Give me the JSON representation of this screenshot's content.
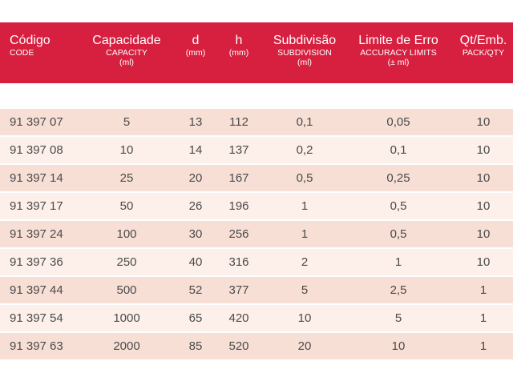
{
  "headers": [
    {
      "main": "Código",
      "sub": "CODE",
      "sub2": ""
    },
    {
      "main": "Capacidade",
      "sub": "CAPACITY",
      "sub2": "(ml)"
    },
    {
      "main": "d",
      "sub": "(mm)",
      "sub2": ""
    },
    {
      "main": "h",
      "sub": "(mm)",
      "sub2": ""
    },
    {
      "main": "Subdivisão",
      "sub": "SUBDIVISION",
      "sub2": "(ml)"
    },
    {
      "main": "Limite de Erro",
      "sub": "ACCURACY LIMITS",
      "sub2": "(± ml)"
    },
    {
      "main": "Qt/Emb.",
      "sub": "PACK/QTY",
      "sub2": ""
    }
  ],
  "rows": [
    [
      "91 397 07",
      "5",
      "13",
      "112",
      "0,1",
      "0,05",
      "10"
    ],
    [
      "91 397 08",
      "10",
      "14",
      "137",
      "0,2",
      "0,1",
      "10"
    ],
    [
      "91 397 14",
      "25",
      "20",
      "167",
      "0,5",
      "0,25",
      "10"
    ],
    [
      "91 397 17",
      "50",
      "26",
      "196",
      "1",
      "0,5",
      "10"
    ],
    [
      "91 397 24",
      "100",
      "30",
      "256",
      "1",
      "0,5",
      "10"
    ],
    [
      "91 397 36",
      "250",
      "40",
      "316",
      "2",
      "1",
      "10"
    ],
    [
      "91 397 44",
      "500",
      "52",
      "377",
      "5",
      "2,5",
      "1"
    ],
    [
      "91 397 54",
      "1000",
      "65",
      "420",
      "10",
      "5",
      "1"
    ],
    [
      "91 397 63",
      "2000",
      "85",
      "520",
      "20",
      "10",
      "1"
    ]
  ],
  "colors": {
    "header_bg": "#d71f3f",
    "row_odd": "#f8dfd6",
    "row_even": "#fdf0ea",
    "text": "#4a4a4a"
  }
}
